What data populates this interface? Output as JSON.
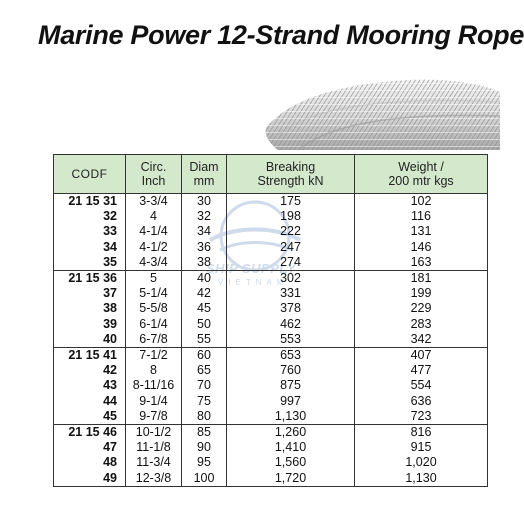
{
  "title": "Marine Power 12-Strand Mooring Rope",
  "watermark": {
    "line1": "SHIP SUPPLY",
    "line2": "VIETNAM"
  },
  "table": {
    "headers": {
      "code": "CODF",
      "circ": [
        "Circ.",
        "Inch"
      ],
      "diam": [
        "Diam",
        "mm"
      ],
      "breaking": [
        "Breaking",
        "Strength kN"
      ],
      "weight": [
        "Weight /",
        "200 mtr kgs"
      ]
    },
    "groups": [
      {
        "rows": [
          {
            "code": "21 15 31",
            "circ": "3-3/4",
            "diam": "30",
            "breaking": "175",
            "weight": "102"
          },
          {
            "code": "32",
            "circ": "4",
            "diam": "32",
            "breaking": "198",
            "weight": "116"
          },
          {
            "code": "33",
            "circ": "4-1/4",
            "diam": "34",
            "breaking": "222",
            "weight": "131"
          },
          {
            "code": "34",
            "circ": "4-1/2",
            "diam": "36",
            "breaking": "247",
            "weight": "146"
          },
          {
            "code": "35",
            "circ": "4-3/4",
            "diam": "38",
            "breaking": "274",
            "weight": "163"
          }
        ]
      },
      {
        "rows": [
          {
            "code": "21 15 36",
            "circ": "5",
            "diam": "40",
            "breaking": "302",
            "weight": "181"
          },
          {
            "code": "37",
            "circ": "5-1/4",
            "diam": "42",
            "breaking": "331",
            "weight": "199"
          },
          {
            "code": "38",
            "circ": "5-5/8",
            "diam": "45",
            "breaking": "378",
            "weight": "229"
          },
          {
            "code": "39",
            "circ": "6-1/4",
            "diam": "50",
            "breaking": "462",
            "weight": "283"
          },
          {
            "code": "40",
            "circ": "6-7/8",
            "diam": "55",
            "breaking": "553",
            "weight": "342"
          }
        ]
      },
      {
        "rows": [
          {
            "code": "21 15 41",
            "circ": "7-1/2",
            "diam": "60",
            "breaking": "653",
            "weight": "407"
          },
          {
            "code": "42",
            "circ": "8",
            "diam": "65",
            "breaking": "760",
            "weight": "477"
          },
          {
            "code": "43",
            "circ": "8-11/16",
            "diam": "70",
            "breaking": "875",
            "weight": "554"
          },
          {
            "code": "44",
            "circ": "9-1/4",
            "diam": "75",
            "breaking": "997",
            "weight": "636"
          },
          {
            "code": "45",
            "circ": "9-7/8",
            "diam": "80",
            "breaking": "1,130",
            "weight": "723"
          }
        ]
      },
      {
        "rows": [
          {
            "code": "21 15 46",
            "circ": "10-1/2",
            "diam": "85",
            "breaking": "1,260",
            "weight": "816"
          },
          {
            "code": "47",
            "circ": "11-1/8",
            "diam": "90",
            "breaking": "1,410",
            "weight": "915"
          },
          {
            "code": "48",
            "circ": "11-3/4",
            "diam": "95",
            "breaking": "1,560",
            "weight": "1,020"
          },
          {
            "code": "49",
            "circ": "12-3/8",
            "diam": "100",
            "breaking": "1,720",
            "weight": "1,130"
          }
        ]
      }
    ]
  }
}
